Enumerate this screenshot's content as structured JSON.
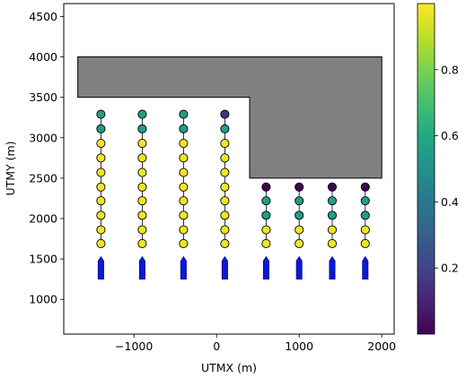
{
  "chart_data": {
    "type": "scatter",
    "title": "",
    "xlabel": "UTMX (m)",
    "ylabel": "UTMY (m)",
    "xlim": [
      -1850,
      2150
    ],
    "ylim": [
      570,
      4660
    ],
    "xticks": [
      -1000,
      0,
      1000,
      2000
    ],
    "xtick_labels": [
      "−1000",
      "0",
      "1000",
      "2000"
    ],
    "yticks": [
      1000,
      1500,
      2000,
      2500,
      3000,
      3500,
      4000,
      4500
    ],
    "ytick_labels": [
      "1000",
      "1500",
      "2000",
      "2500",
      "3000",
      "3500",
      "4000",
      "4500"
    ],
    "grid": false,
    "obstacle": {
      "fill": "#808080",
      "vertices": [
        [
          -1680,
          4000
        ],
        [
          2000,
          4000
        ],
        [
          2000,
          2500
        ],
        [
          400,
          2500
        ],
        [
          400,
          3500
        ],
        [
          -1680,
          3500
        ]
      ]
    },
    "strings": [
      {
        "x": -1400,
        "y": [
          1690,
          1860,
          2040,
          2220,
          2390,
          2570,
          2750,
          2930,
          3110,
          3290
        ],
        "values": [
          0.98,
          0.98,
          0.98,
          0.98,
          0.98,
          0.98,
          0.98,
          0.98,
          0.55,
          0.55
        ]
      },
      {
        "x": -900,
        "y": [
          1690,
          1860,
          2040,
          2220,
          2390,
          2570,
          2750,
          2930,
          3110,
          3290
        ],
        "values": [
          0.98,
          0.98,
          0.98,
          0.98,
          0.98,
          0.98,
          0.98,
          0.98,
          0.55,
          0.55
        ]
      },
      {
        "x": -400,
        "y": [
          1690,
          1860,
          2040,
          2220,
          2390,
          2570,
          2750,
          2930,
          3110,
          3290
        ],
        "values": [
          0.98,
          0.98,
          0.98,
          0.98,
          0.98,
          0.98,
          0.98,
          0.98,
          0.55,
          0.55
        ]
      },
      {
        "x": 100,
        "y": [
          1690,
          1860,
          2040,
          2220,
          2390,
          2570,
          2750,
          2930,
          3110,
          3290
        ],
        "values": [
          0.98,
          0.98,
          0.98,
          0.98,
          0.98,
          0.98,
          0.98,
          0.98,
          0.55,
          0.15
        ]
      },
      {
        "x": 600,
        "y": [
          1690,
          1860,
          2040,
          2220,
          2390
        ],
        "values": [
          0.98,
          0.98,
          0.55,
          0.55,
          0.0
        ]
      },
      {
        "x": 1000,
        "y": [
          1690,
          1860,
          2040,
          2220,
          2390
        ],
        "values": [
          0.98,
          0.98,
          0.55,
          0.55,
          0.0
        ]
      },
      {
        "x": 1400,
        "y": [
          1690,
          1860,
          2040,
          2220,
          2390
        ],
        "values": [
          0.98,
          0.98,
          0.55,
          0.55,
          0.0
        ]
      },
      {
        "x": 1800,
        "y": [
          1690,
          1860,
          2040,
          2220,
          2390
        ],
        "values": [
          0.98,
          0.98,
          0.55,
          0.55,
          0.0
        ]
      }
    ],
    "boats": {
      "color": "#0a1ad0",
      "x": [
        -1400,
        -900,
        -400,
        100,
        600,
        1000,
        1400,
        1800
      ],
      "y_bottom": 1250,
      "y_top": 1530
    },
    "colorbar": {
      "colormap": "viridis",
      "range": [
        0,
        1
      ],
      "ticks": [
        0.2,
        0.4,
        0.6,
        0.8
      ],
      "tick_labels": [
        "0.2",
        "0.4",
        "0.6",
        "0.8"
      ]
    }
  }
}
